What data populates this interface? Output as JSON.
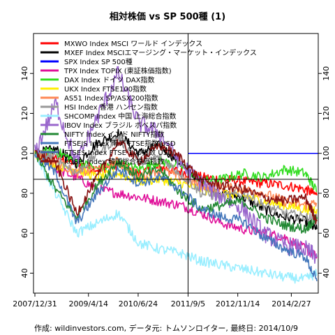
{
  "chart_data": {
    "type": "line",
    "title": "相対株価 vs SP 500種 (1)",
    "caption": "作成: wildinvestors.com, データ元: トムソンロイター, 最終日: 2014/10/9",
    "xlabel": "",
    "ylabel": "",
    "x_start": "2007/12/31",
    "x_end": "2014/10/9",
    "xlim": [
      "2007/12/31",
      "2014/10/9"
    ],
    "ylim": [
      30,
      160
    ],
    "yticks": [
      40,
      60,
      80,
      100,
      120,
      140
    ],
    "xticks": [
      "2007/12/31",
      "2009/4/14",
      "2010/6/24",
      "2011/9/5",
      "2012/11/14",
      "2014/2/27"
    ],
    "legend_position": "top-left",
    "grid": false,
    "reference_lines": {
      "vertical_date": "2011/9/5",
      "horizontal_value": 87
    },
    "x": [
      "2007/12/31",
      "2008/6/30",
      "2008/12/31",
      "2009/6/30",
      "2009/12/31",
      "2010/6/30",
      "2010/12/31",
      "2011/6/30",
      "2011/12/31",
      "2012/6/30",
      "2012/12/31",
      "2013/6/30",
      "2013/12/31",
      "2014/6/30",
      "2014/10/9"
    ],
    "series": [
      {
        "name": "MXWO Index MSCI ワールド インデックス",
        "color": "#ff0000",
        "values": [
          100,
          98,
          95,
          92,
          94,
          90,
          93,
          91,
          88,
          87,
          86,
          85,
          84,
          82,
          79
        ]
      },
      {
        "name": "MXEF Index MSCIエマージング・マーケット・インデックス",
        "color": "#000000",
        "values": [
          100,
          102,
          95,
          105,
          110,
          100,
          104,
          95,
          85,
          80,
          78,
          72,
          68,
          66,
          62
        ]
      },
      {
        "name": "SPX Index SP 500種",
        "color": "#0000ff",
        "values": [
          100,
          100,
          100,
          100,
          100,
          100,
          100,
          100,
          100,
          100,
          100,
          100,
          100,
          100,
          100
        ]
      },
      {
        "name": "TPX Index TOPIX (東証株価指数)",
        "color": "#e0109a",
        "values": [
          100,
          92,
          88,
          82,
          80,
          78,
          76,
          74,
          70,
          65,
          62,
          60,
          58,
          52,
          48
        ]
      },
      {
        "name": "DAX Index ドイツ DAX指数",
        "color": "#33dd22",
        "values": [
          100,
          101,
          96,
          92,
          95,
          92,
          96,
          94,
          86,
          87,
          90,
          88,
          92,
          90,
          81
        ]
      },
      {
        "name": "UKX Index FTSE100指数",
        "color": "#ffee00",
        "values": [
          100,
          94,
          92,
          88,
          90,
          86,
          87,
          85,
          82,
          80,
          79,
          76,
          74,
          72,
          72
        ]
      },
      {
        "name": "AS51 Index SP/ASX200指数",
        "color": "#ff8855",
        "values": [
          100,
          96,
          90,
          92,
          96,
          88,
          92,
          88,
          84,
          83,
          82,
          80,
          76,
          74,
          75
        ]
      },
      {
        "name": "HSI Index 香港 ハンセン指数",
        "color": "#999999",
        "values": [
          100,
          98,
          90,
          100,
          108,
          96,
          98,
          90,
          80,
          78,
          80,
          74,
          70,
          68,
          67
        ]
      },
      {
        "name": "SHCOMP Index 中国 上海総合指数",
        "color": "#99eeff",
        "values": [
          100,
          80,
          60,
          65,
          70,
          55,
          52,
          50,
          46,
          44,
          42,
          40,
          38,
          37,
          40
        ]
      },
      {
        "name": "IBOV Index ブラジル ボベスパ指数",
        "color": "#9966cc",
        "values": [
          100,
          125,
          95,
          118,
          140,
          115,
          110,
          95,
          85,
          78,
          72,
          60,
          54,
          52,
          48
        ]
      },
      {
        "name": "NIFTY Index インド NIFTY指数",
        "color": "#228833",
        "values": [
          100,
          82,
          68,
          84,
          96,
          88,
          92,
          80,
          72,
          74,
          76,
          68,
          64,
          62,
          68
        ]
      },
      {
        "name": "FTSEJS Index 南ア FTSE指数 USD",
        "color": "#4477bb",
        "values": [
          100,
          90,
          65,
          80,
          92,
          85,
          88,
          82,
          72,
          68,
          66,
          58,
          52,
          48,
          36
        ]
      },
      {
        "name": "KOSPI Index 韓国総合株価指数",
        "color": "#881111",
        "values": [
          100,
          95,
          70,
          88,
          106,
          96,
          104,
          98,
          86,
          84,
          82,
          78,
          76,
          78,
          66
        ]
      }
    ],
    "legend_entries_extra": [
      {
        "name": "FTSE$ Index FTSE 100指数 USD",
        "color": "#4466aa"
      }
    ]
  }
}
